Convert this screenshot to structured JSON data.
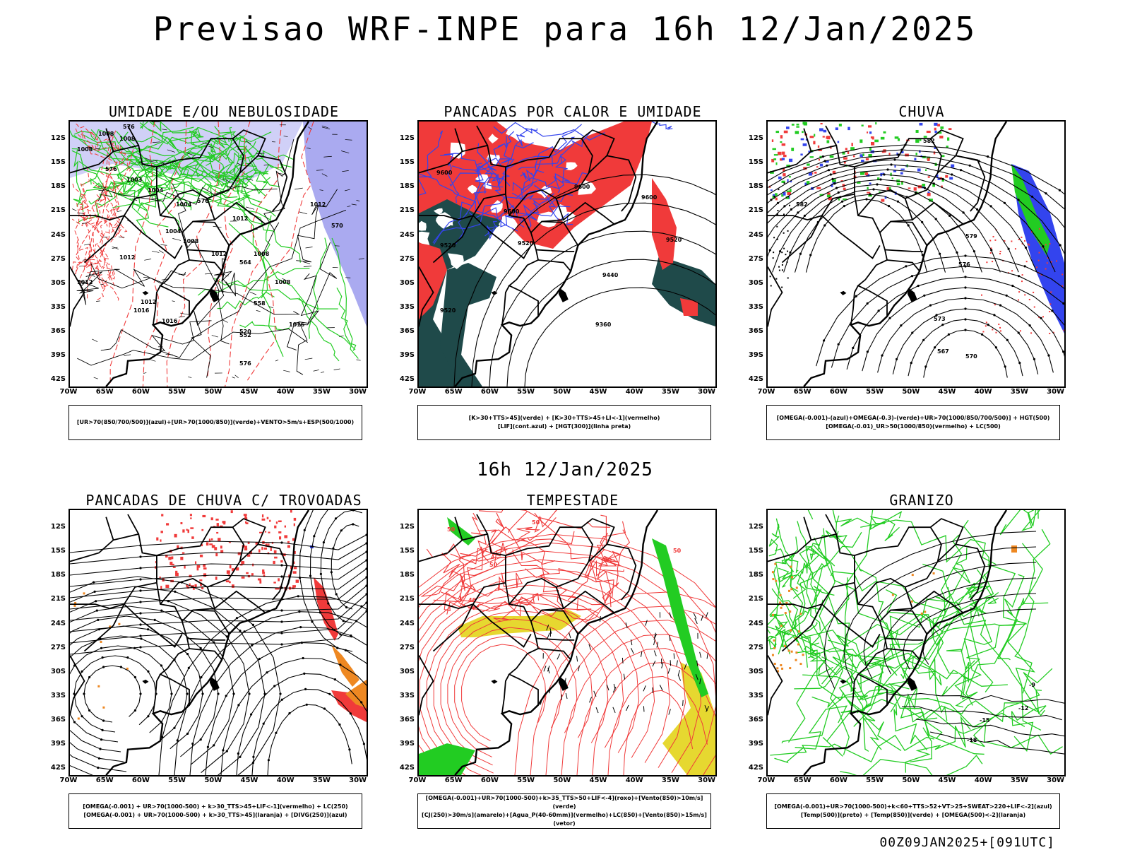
{
  "header": {
    "title": "Previsao WRF-INPE  para 16h 12/Jan/2025"
  },
  "mid_title": "16h 12/Jan/2025",
  "footer": "00Z09JAN2025+[091UTC]",
  "axes": {
    "lat_labels": [
      "12S",
      "15S",
      "18S",
      "21S",
      "24S",
      "27S",
      "30S",
      "33S",
      "36S",
      "39S",
      "42S"
    ],
    "lon_labels": [
      "70W",
      "65W",
      "60W",
      "55W",
      "50W",
      "45W",
      "40W",
      "35W",
      "30W"
    ]
  },
  "colors": {
    "red": "#f03a3a",
    "green": "#22cc22",
    "blue": "#3344ee",
    "lavender": "#aaaaf0",
    "teal": "#1f4a4a",
    "yellow": "#e6d830",
    "orange": "#ee8822",
    "black": "#000000"
  },
  "panels": [
    {
      "title": "UMIDADE E/OU NEBULOSIDADE",
      "legend": [
        "[UR>70(850/700/500)](azul)+[UR>70(1000/850)](verde)+VENTO>5m/s+ESP(500/1000)"
      ],
      "contours": [
        "1008",
        "1008",
        "1008",
        "1003",
        "1004",
        "1004",
        "1004",
        "1008",
        "1012",
        "1012",
        "1012",
        "1016",
        "1012",
        "1016",
        "1008",
        "1008",
        "1012",
        "1012",
        "1016",
        "576",
        "576",
        "576",
        "576",
        "570",
        "564",
        "558",
        "552",
        "520"
      ]
    },
    {
      "title": "PANCADAS POR CALOR E UMIDADE",
      "legend": [
        "[K>30+TTS>45](verde) + [K>30+TTS>45+LI<-1](vermelho)",
        "[LIF](cont.azul) + [HGT(300)](linha preta)"
      ],
      "contours": [
        "9600",
        "9600",
        "9600",
        "9600",
        "9520",
        "9520",
        "9520",
        "9520",
        "9440",
        "9360"
      ]
    },
    {
      "title": "CHUVA",
      "legend": [
        "[OMEGA(-0.001)-(azul)+OMEGA(-0.3)-(verde)+UR>70(1000/850/700/500)] + HGT(500)",
        "[OMEGA(-0.01)_UR>50(1000/850)(vermelho) + LC(500)"
      ],
      "contours": [
        "582",
        "582",
        "579",
        "576",
        "573",
        "570",
        "567"
      ]
    },
    {
      "title": "PANCADAS DE CHUVA C/ TROVOADAS",
      "legend": [
        "[OMEGA(-0.001) + UR>70(1000-500) + k>30_TTS>45+LIF<-1](vermelho) + LC(250)",
        "[OMEGA(-0.001) + UR>70(1000-500) + k>30_TTS>45](laranja) + [DIVG(250)](azul)"
      ],
      "contours": []
    },
    {
      "title": "TEMPESTADE",
      "legend": [
        "[OMEGA(-0.001)+UR>70(1000-500)+k>35_TTS>50+LIF<-4](roxo)+[Vento(850)>10m/s](verde)",
        "[CJ(250)>30m/s](amarelo)+[Agua_P(40-60mm)](vermelho)+LC(850)+[Vento(850)>15m/s](vetor)"
      ],
      "contours": [
        "50",
        "50",
        "50",
        "50",
        "40"
      ]
    },
    {
      "title": "GRANIZO",
      "legend": [
        "[OMEGA(-0.001)+UR>70(1000-500)+k<60+TTS>52+VT>25+SWEAT>220+LIF<-2](azul)",
        "[Temp(500)](preto) + [Temp(850)](verde) + [OMEGA(500)<-2](laranja)"
      ],
      "contours": [
        "-9",
        "-12",
        "-15",
        "-18"
      ]
    }
  ]
}
